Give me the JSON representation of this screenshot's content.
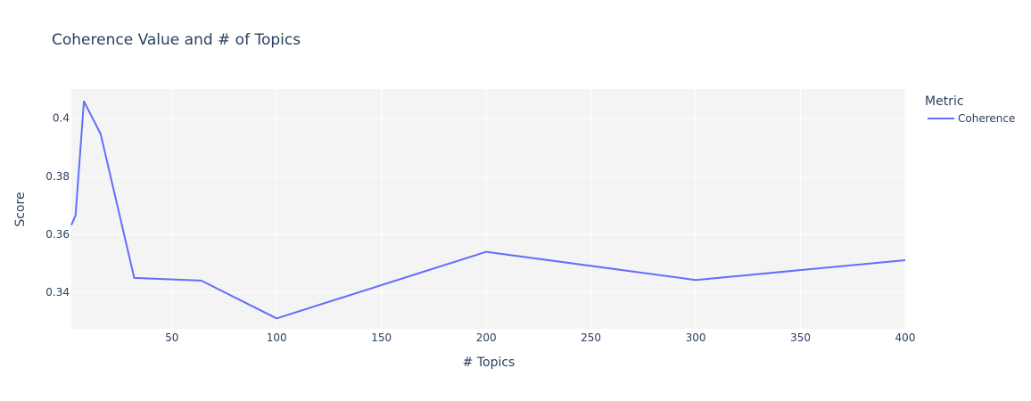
{
  "chart_data": {
    "type": "line",
    "title": "Coherence Value and # of Topics",
    "xlabel": "# Topics",
    "ylabel": "Score",
    "xlim": [
      2,
      400
    ],
    "ylim": [
      0.3275,
      0.41
    ],
    "xticks": [
      50,
      100,
      150,
      200,
      250,
      300,
      350,
      400
    ],
    "yticks": [
      0.34,
      0.36,
      0.38,
      0.4
    ],
    "grid": true,
    "legend": {
      "title": "Metric",
      "placement": "top-right"
    },
    "series": [
      {
        "name": "Coherence",
        "color": "#636efa",
        "x": [
          2,
          4,
          8,
          16,
          32,
          64,
          100,
          200,
          300,
          400
        ],
        "y": [
          0.3632,
          0.3665,
          0.4058,
          0.3945,
          0.345,
          0.3441,
          0.3311,
          0.354,
          0.3443,
          0.3511
        ]
      }
    ]
  },
  "colors": {
    "plot_background": "#f4f4f4",
    "grid": "#ffffff",
    "text": "#2a3f5f"
  }
}
